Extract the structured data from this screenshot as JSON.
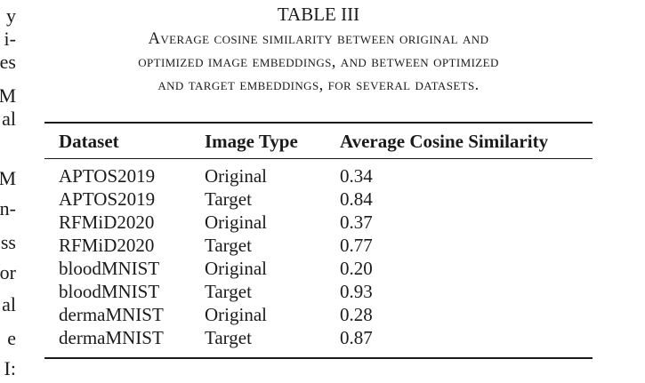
{
  "left_margin_text": [
    "y",
    "i-",
    "es",
    "M",
    "al",
    "M",
    "n-",
    "ss",
    "or",
    "al",
    "e",
    "I:"
  ],
  "table": {
    "number": "TABLE III",
    "caption_lines": [
      "Average cosine similarity between original and",
      "optimized image embeddings, and between optimized",
      "and target embeddings, for several datasets."
    ],
    "headers": [
      "Dataset",
      "Image Type",
      "Average Cosine Similarity"
    ],
    "rows": [
      {
        "dataset": "APTOS2019",
        "type": "Original",
        "similarity": "0.34"
      },
      {
        "dataset": "APTOS2019",
        "type": "Target",
        "similarity": "0.84"
      },
      {
        "dataset": "RFMiD2020",
        "type": "Original",
        "similarity": "0.37"
      },
      {
        "dataset": "RFMiD2020",
        "type": "Target",
        "similarity": "0.77"
      },
      {
        "dataset": "bloodMNIST",
        "type": "Original",
        "similarity": "0.20"
      },
      {
        "dataset": "bloodMNIST",
        "type": "Target",
        "similarity": "0.93"
      },
      {
        "dataset": "dermaMNIST",
        "type": "Original",
        "similarity": "0.28"
      },
      {
        "dataset": "dermaMNIST",
        "type": "Target",
        "similarity": "0.87"
      }
    ]
  }
}
